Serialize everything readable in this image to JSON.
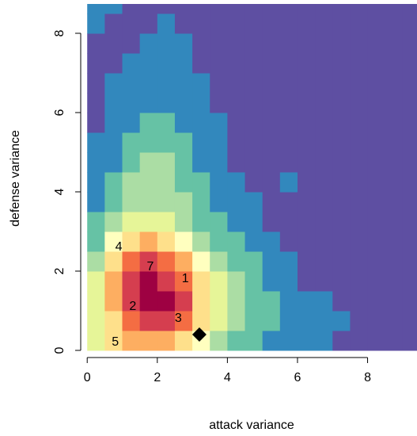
{
  "chart_data": {
    "type": "heatmap",
    "xlabel": "attack variance",
    "ylabel": "defense variance",
    "xlim": [
      -0.05,
      9.41
    ],
    "ylim": [
      -0.06,
      8.74
    ],
    "xticks": [
      0,
      2,
      4,
      6,
      8
    ],
    "yticks": [
      0,
      2,
      4,
      6,
      8
    ],
    "x_edges": [
      0,
      0.5,
      1,
      1.5,
      2,
      2.5,
      3,
      3.5,
      4,
      4.5,
      5,
      5.5,
      6,
      6.5,
      7,
      7.5,
      8,
      8.5,
      9,
      9.5
    ],
    "y_edges": [
      0,
      0.5,
      1,
      1.5,
      2,
      2.5,
      3,
      3.5,
      4,
      4.5,
      5,
      5.5,
      6,
      6.5,
      7,
      7.5,
      8,
      8.5,
      9
    ],
    "colors": [
      "#5e4fa2",
      "#3288bd",
      "#66c2a5",
      "#abdda4",
      "#e6f598",
      "#ffffbf",
      "#fee08b",
      "#fdae61",
      "#f46d43",
      "#d53e4f",
      "#9e0142"
    ],
    "z": [
      [
        4,
        6,
        7,
        7,
        7,
        6,
        5,
        3,
        2,
        2,
        1,
        1,
        1,
        1,
        0,
        0,
        0,
        0,
        0
      ],
      [
        4,
        6,
        8,
        9,
        9,
        8,
        6,
        4,
        3,
        2,
        2,
        1,
        1,
        1,
        1,
        0,
        0,
        0,
        0
      ],
      [
        4,
        7,
        9,
        10,
        10,
        9,
        6,
        4,
        3,
        2,
        2,
        1,
        1,
        1,
        0,
        0,
        0,
        0,
        0
      ],
      [
        4,
        7,
        9,
        10,
        9,
        8,
        6,
        4,
        3,
        2,
        1,
        1,
        0,
        0,
        0,
        0,
        0,
        0,
        0
      ],
      [
        3,
        6,
        8,
        9,
        8,
        7,
        5,
        3,
        2,
        2,
        1,
        1,
        0,
        0,
        0,
        0,
        0,
        0,
        0
      ],
      [
        2,
        5,
        6,
        7,
        6,
        5,
        3,
        2,
        2,
        1,
        1,
        0,
        0,
        0,
        0,
        0,
        0,
        0,
        0
      ],
      [
        2,
        3,
        4,
        4,
        4,
        3,
        2,
        2,
        1,
        1,
        0,
        0,
        0,
        0,
        0,
        0,
        0,
        0,
        0
      ],
      [
        1,
        2,
        3,
        3,
        3,
        3,
        2,
        1,
        1,
        1,
        0,
        0,
        0,
        0,
        0,
        0,
        0,
        0,
        0
      ],
      [
        1,
        2,
        3,
        3,
        3,
        2,
        2,
        1,
        1,
        0,
        0,
        1,
        0,
        0,
        0,
        0,
        0,
        0,
        0
      ],
      [
        1,
        1,
        2,
        3,
        3,
        2,
        1,
        1,
        0,
        0,
        0,
        0,
        0,
        0,
        0,
        0,
        0,
        0,
        0
      ],
      [
        1,
        1,
        2,
        2,
        2,
        2,
        1,
        1,
        0,
        0,
        0,
        0,
        0,
        0,
        0,
        0,
        0,
        0,
        0
      ],
      [
        0,
        1,
        1,
        2,
        2,
        1,
        1,
        1,
        0,
        0,
        0,
        0,
        0,
        0,
        0,
        0,
        0,
        0,
        0
      ],
      [
        0,
        1,
        1,
        1,
        1,
        1,
        1,
        0,
        0,
        0,
        0,
        0,
        0,
        0,
        0,
        0,
        0,
        0,
        0
      ],
      [
        0,
        1,
        1,
        1,
        1,
        1,
        1,
        0,
        0,
        0,
        0,
        0,
        0,
        0,
        0,
        0,
        0,
        0,
        0
      ],
      [
        0,
        0,
        1,
        1,
        1,
        1,
        0,
        0,
        0,
        0,
        0,
        0,
        0,
        0,
        0,
        0,
        0,
        0,
        0
      ],
      [
        0,
        0,
        0,
        1,
        1,
        1,
        0,
        0,
        0,
        0,
        0,
        0,
        0,
        0,
        0,
        0,
        0,
        0,
        0
      ],
      [
        1,
        0,
        0,
        0,
        1,
        0,
        0,
        0,
        0,
        0,
        0,
        0,
        0,
        0,
        0,
        0,
        0,
        0,
        0
      ],
      [
        1,
        1,
        0,
        0,
        0,
        0,
        0,
        0,
        0,
        0,
        0,
        0,
        0,
        0,
        0,
        0,
        0,
        0,
        0
      ]
    ],
    "labels": [
      {
        "label": "1",
        "x": 2.8,
        "y": 1.8
      },
      {
        "label": "2",
        "x": 1.3,
        "y": 1.1
      },
      {
        "label": "3",
        "x": 2.6,
        "y": 0.8
      },
      {
        "label": "4",
        "x": 0.9,
        "y": 2.6
      },
      {
        "label": "5",
        "x": 0.8,
        "y": 0.2
      },
      {
        "label": "7",
        "x": 1.8,
        "y": 2.1
      }
    ],
    "marker": {
      "x": 3.2,
      "y": 0.4
    }
  }
}
